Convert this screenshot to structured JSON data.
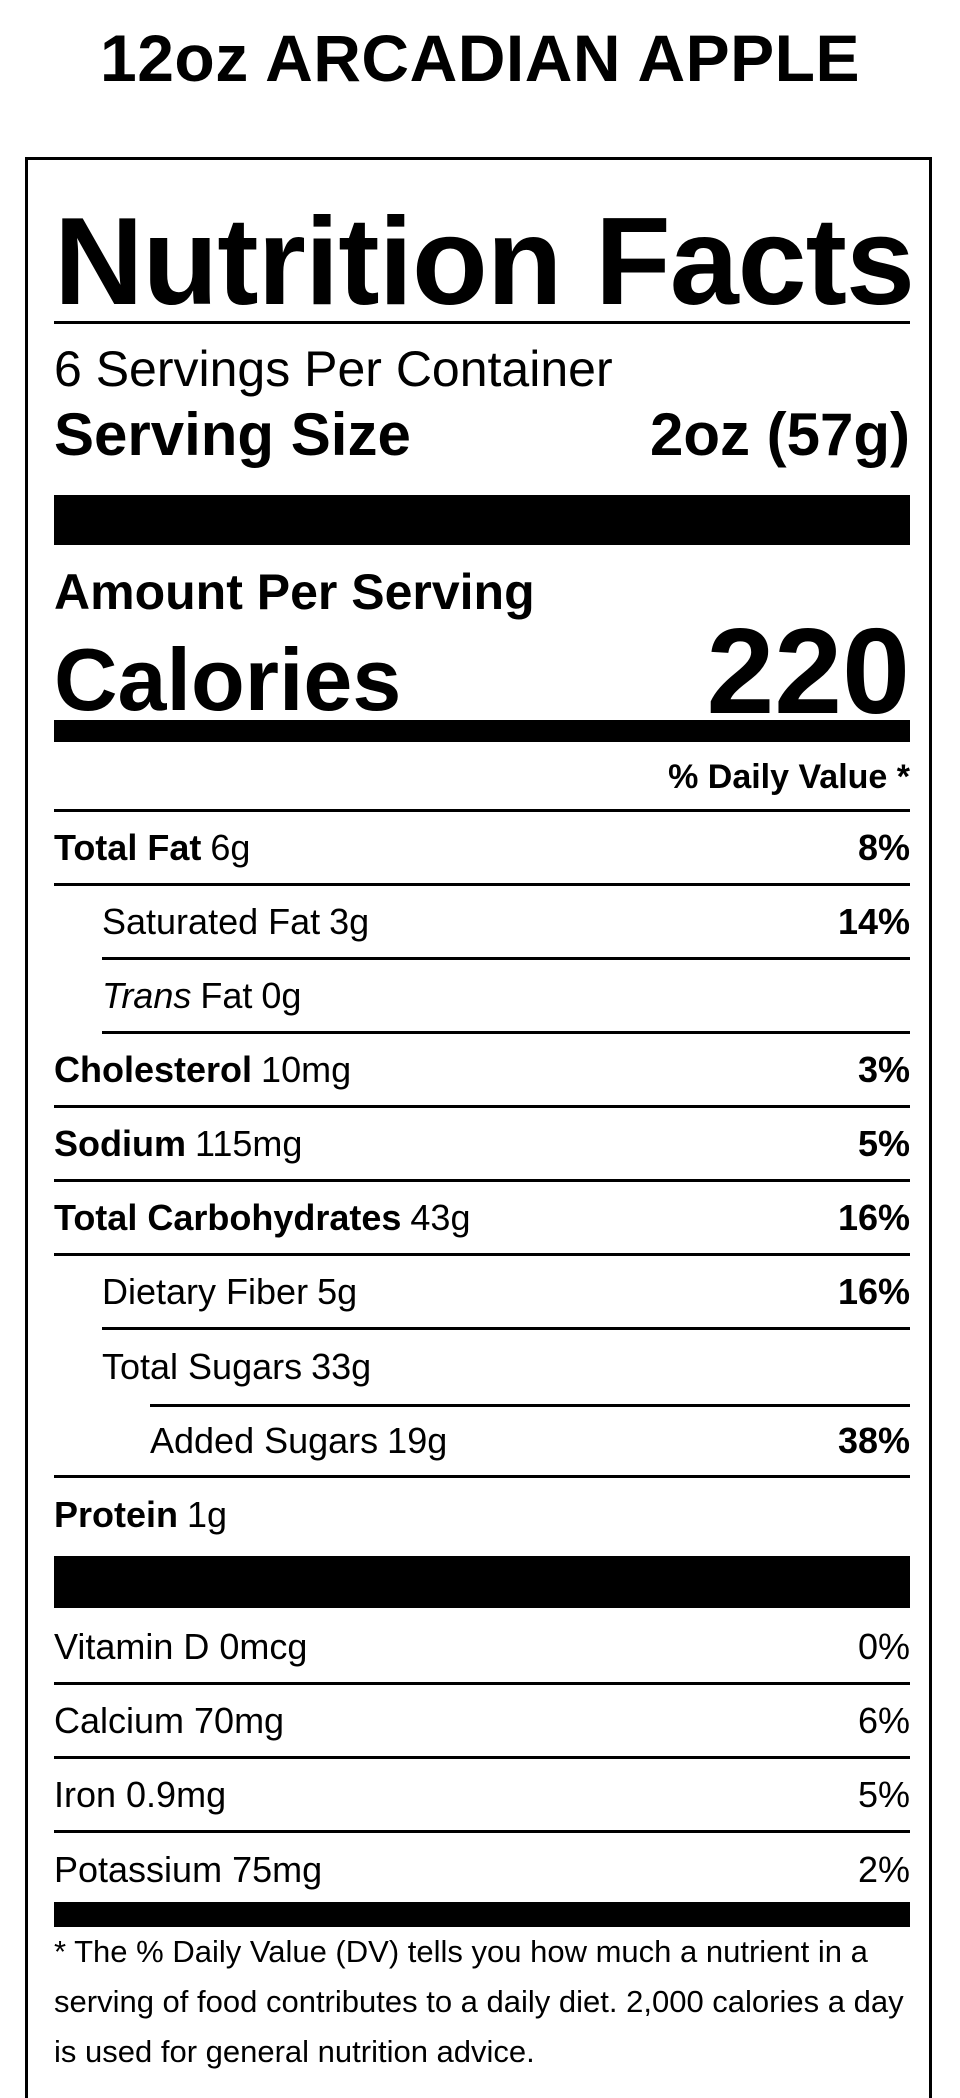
{
  "product": {
    "title": "12oz ARCADIAN APPLE"
  },
  "label": {
    "heading": "Nutrition Facts",
    "servings_per_container": "6 Servings Per Container",
    "serving_size_label": "Serving Size",
    "serving_size_value": "2oz (57g)",
    "amount_per_serving": "Amount Per Serving",
    "calories_label": "Calories",
    "calories_value": "220",
    "daily_value_header": "% Daily Value *"
  },
  "nutrients": [
    {
      "name": "Total Fat",
      "amount": "6g",
      "dv": "8%"
    },
    {
      "name": "Saturated Fat",
      "amount": "3g",
      "dv": "14%"
    },
    {
      "name_italic": "Trans",
      "name": "Fat",
      "amount": "0g",
      "dv": ""
    },
    {
      "name": "Cholesterol",
      "amount": "10mg",
      "dv": "3%"
    },
    {
      "name": "Sodium",
      "amount": "115mg",
      "dv": "5%"
    },
    {
      "name": "Total Carbohydrates",
      "amount": "43g",
      "dv": "16%"
    },
    {
      "name": "Dietary Fiber",
      "amount": "5g",
      "dv": "16%"
    },
    {
      "name": "Total Sugars",
      "amount": "33g",
      "dv": ""
    },
    {
      "name": "Added Sugars",
      "amount": "19g",
      "dv": "38%"
    },
    {
      "name": "Protein",
      "amount": "1g",
      "dv": ""
    }
  ],
  "vitamins": [
    {
      "label": "Vitamin D 0mcg",
      "dv": "0%"
    },
    {
      "label": "Calcium 70mg",
      "dv": "6%"
    },
    {
      "label": "Iron 0.9mg",
      "dv": "5%"
    },
    {
      "label": "Potassium 75mg",
      "dv": "2%"
    }
  ],
  "footnote": "* The % Daily Value (DV) tells you how much a nutrient in a serving of food contributes to a daily diet. 2,000 calories a day is used for general nutrition advice."
}
